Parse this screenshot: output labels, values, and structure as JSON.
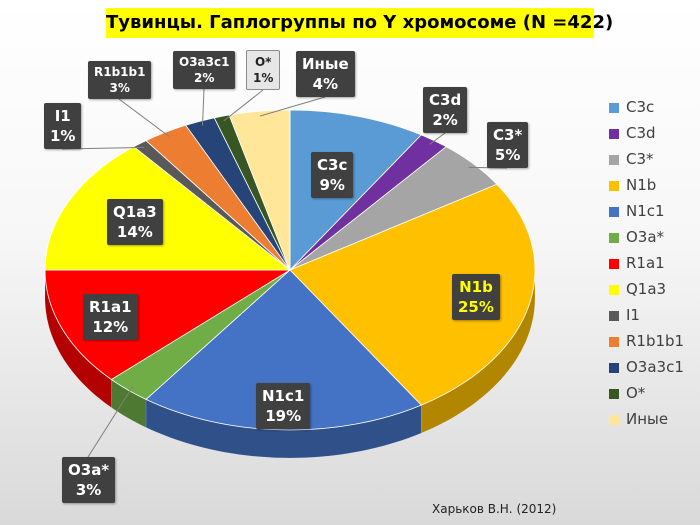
{
  "chart_data": {
    "type": "pie",
    "title": "Тувинцы.  Гаплогруппы по Y хромосоме (N =422)",
    "slices": [
      {
        "name": "C3c",
        "value": 9,
        "pct_label": "9%",
        "color": "#5b9bd5"
      },
      {
        "name": "C3d",
        "value": 2,
        "pct_label": "2%",
        "color": "#7030a0"
      },
      {
        "name": "C3*",
        "value": 5,
        "pct_label": "5%",
        "color": "#a5a5a5"
      },
      {
        "name": "N1b",
        "value": 25,
        "pct_label": "25%",
        "color": "#ffc000"
      },
      {
        "name": "N1c1",
        "value": 19,
        "pct_label": "19%",
        "color": "#4472c4"
      },
      {
        "name": "O3a*",
        "value": 3,
        "pct_label": "3%",
        "color": "#70ad47"
      },
      {
        "name": "R1a1",
        "value": 12,
        "pct_label": "12%",
        "color": "#ff0000"
      },
      {
        "name": "Q1a3",
        "value": 14,
        "pct_label": "14%",
        "color": "#ffff00"
      },
      {
        "name": "I1",
        "value": 1,
        "pct_label": "1%",
        "color": "#595959"
      },
      {
        "name": "R1b1b1",
        "value": 3,
        "pct_label": "3%",
        "color": "#ed7d31"
      },
      {
        "name": "O3a3c1",
        "value": 2,
        "pct_label": "2%",
        "color": "#264478"
      },
      {
        "name": "O*",
        "value": 1,
        "pct_label": "1%",
        "color": "#375623"
      },
      {
        "name": "Иные",
        "value": 4,
        "pct_label": "4%",
        "color": "#ffe699"
      }
    ],
    "legend_position": "right"
  },
  "source": "Харьков В.Н. (2012)"
}
